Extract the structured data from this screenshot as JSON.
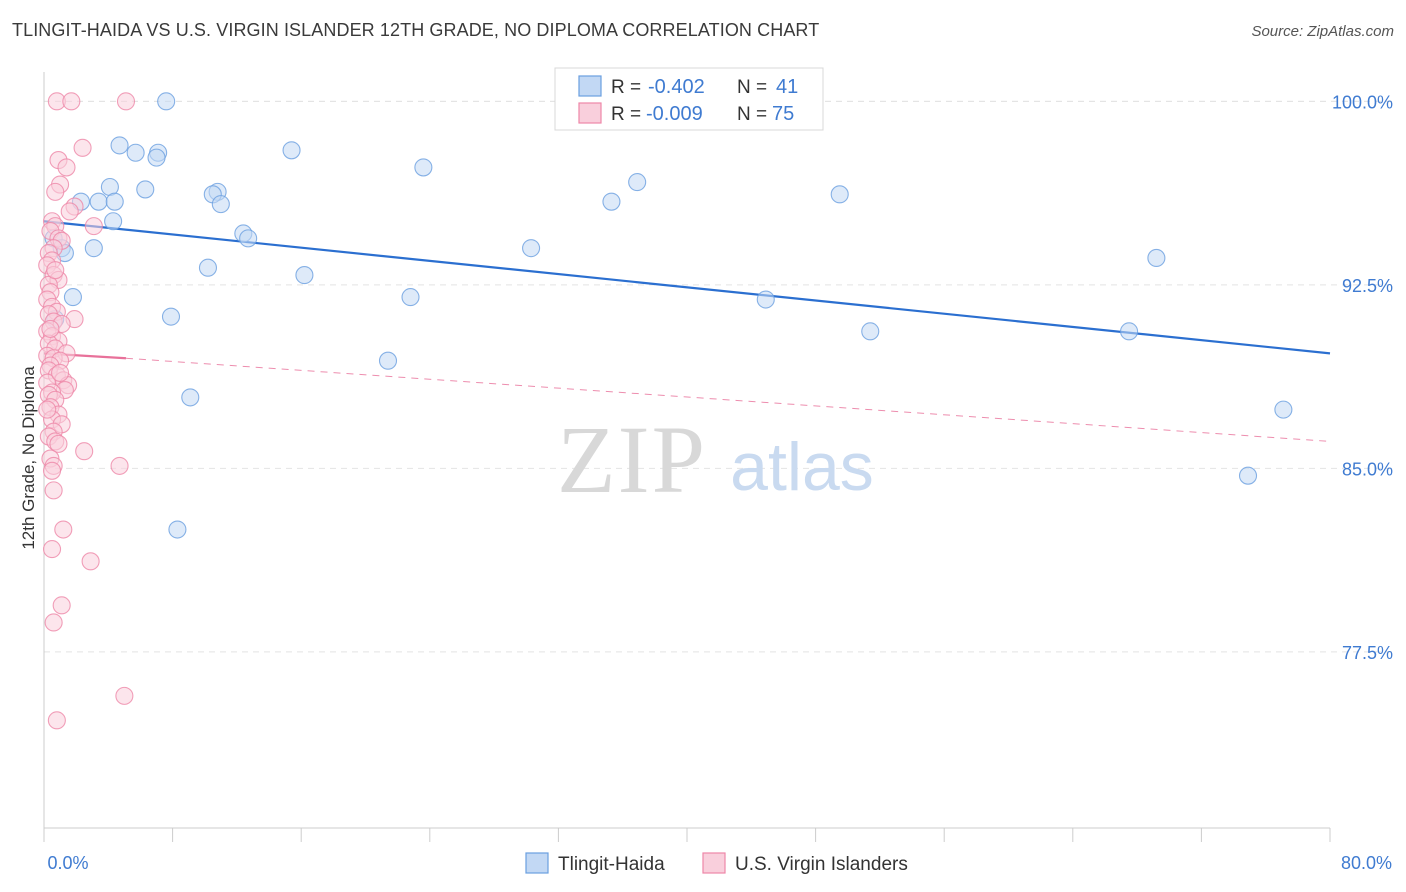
{
  "title": "TLINGIT-HAIDA VS U.S. VIRGIN ISLANDER 12TH GRADE, NO DIPLOMA CORRELATION CHART",
  "source": "Source: ZipAtlas.com",
  "watermark": {
    "zip": "ZIP",
    "atlas": "atlas"
  },
  "stats": [
    {
      "r_label": "R =",
      "r_value": "-0.402",
      "n_label": "N =",
      "n_value": "41"
    },
    {
      "r_label": "R =",
      "r_value": "-0.009",
      "n_label": "N =",
      "n_value": "75"
    }
  ],
  "colors": {
    "blue": "#6a9fe0",
    "blue_fill": "#c2d8f4",
    "blue_line": "#2b6fd0",
    "pink": "#ee87a8",
    "pink_fill": "#f9cfdc",
    "pink_line": "#e8719a",
    "axis_text": "#3f7bd1"
  },
  "chart_data": {
    "type": "scatter",
    "title": "TLINGIT-HAIDA VS U.S. VIRGIN ISLANDER 12TH GRADE, NO DIPLOMA CORRELATION CHART",
    "xlabel": "",
    "ylabel": "12th Grade, No Diploma",
    "xlim": [
      0,
      80
    ],
    "ylim": [
      70.3,
      101.2
    ],
    "x_tick_labels": [
      "0.0%",
      "80.0%"
    ],
    "y_ticks": [
      77.5,
      85.0,
      92.5,
      100.0
    ],
    "y_tick_labels": [
      "77.5%",
      "85.0%",
      "92.5%",
      "100.0%"
    ],
    "grid": true,
    "legend_position": "bottom-center",
    "series": [
      {
        "name": "Tlingit-Haida",
        "color": "#6a9fe0",
        "trend": {
          "x": [
            0,
            80
          ],
          "y": [
            95.1,
            89.7
          ]
        },
        "points": [
          [
            7.6,
            100.0
          ],
          [
            4.7,
            98.2
          ],
          [
            15.4,
            98.0
          ],
          [
            5.7,
            97.9
          ],
          [
            7.1,
            97.9
          ],
          [
            7.0,
            97.7
          ],
          [
            23.6,
            97.3
          ],
          [
            36.9,
            96.7
          ],
          [
            4.1,
            96.5
          ],
          [
            6.3,
            96.4
          ],
          [
            10.8,
            96.3
          ],
          [
            49.5,
            96.2
          ],
          [
            10.5,
            96.2
          ],
          [
            2.3,
            95.9
          ],
          [
            3.4,
            95.9
          ],
          [
            4.4,
            95.9
          ],
          [
            35.3,
            95.9
          ],
          [
            11.0,
            95.8
          ],
          [
            4.3,
            95.1
          ],
          [
            12.4,
            94.6
          ],
          [
            12.7,
            94.4
          ],
          [
            0.6,
            94.4
          ],
          [
            30.3,
            94.0
          ],
          [
            3.1,
            94.0
          ],
          [
            1.1,
            94.0
          ],
          [
            1.3,
            93.8
          ],
          [
            69.2,
            93.6
          ],
          [
            10.2,
            93.2
          ],
          [
            16.2,
            92.9
          ],
          [
            1.8,
            92.0
          ],
          [
            22.8,
            92.0
          ],
          [
            44.9,
            91.9
          ],
          [
            7.9,
            91.2
          ],
          [
            0.7,
            91.1
          ],
          [
            51.4,
            90.6
          ],
          [
            67.5,
            90.6
          ],
          [
            21.4,
            89.4
          ],
          [
            9.1,
            87.9
          ],
          [
            77.1,
            87.4
          ],
          [
            74.9,
            84.7
          ],
          [
            8.3,
            82.5
          ]
        ]
      },
      {
        "name": "U.S. Virgin Islanders",
        "color": "#ee87a8",
        "trend": {
          "x": [
            0,
            5.1
          ],
          "y": [
            89.7,
            89.5
          ]
        },
        "trend_ext": {
          "x": [
            5.1,
            80
          ],
          "y": [
            89.5,
            86.1
          ]
        },
        "points": [
          [
            0.8,
            100.0
          ],
          [
            1.7,
            100.0
          ],
          [
            5.1,
            100.0
          ],
          [
            2.4,
            98.1
          ],
          [
            0.9,
            97.6
          ],
          [
            1.4,
            97.3
          ],
          [
            1.0,
            96.6
          ],
          [
            0.7,
            96.3
          ],
          [
            1.9,
            95.7
          ],
          [
            1.6,
            95.5
          ],
          [
            0.5,
            95.1
          ],
          [
            0.7,
            94.9
          ],
          [
            3.1,
            94.9
          ],
          [
            0.4,
            94.7
          ],
          [
            0.9,
            94.4
          ],
          [
            1.1,
            94.3
          ],
          [
            0.6,
            94.0
          ],
          [
            0.3,
            93.8
          ],
          [
            0.5,
            93.5
          ],
          [
            0.2,
            93.3
          ],
          [
            0.6,
            92.9
          ],
          [
            0.9,
            92.7
          ],
          [
            0.3,
            92.5
          ],
          [
            0.4,
            92.2
          ],
          [
            0.2,
            91.9
          ],
          [
            0.5,
            91.6
          ],
          [
            0.8,
            91.4
          ],
          [
            0.3,
            91.3
          ],
          [
            1.9,
            91.1
          ],
          [
            0.6,
            91.0
          ],
          [
            1.1,
            90.9
          ],
          [
            0.2,
            90.6
          ],
          [
            0.5,
            90.4
          ],
          [
            0.9,
            90.2
          ],
          [
            0.3,
            90.1
          ],
          [
            0.7,
            89.9
          ],
          [
            1.4,
            89.7
          ],
          [
            0.2,
            89.6
          ],
          [
            0.6,
            89.5
          ],
          [
            1.0,
            89.4
          ],
          [
            0.4,
            89.2
          ],
          [
            0.3,
            89.0
          ],
          [
            0.8,
            88.8
          ],
          [
            1.2,
            88.6
          ],
          [
            0.2,
            88.5
          ],
          [
            1.5,
            88.4
          ],
          [
            1.3,
            88.2
          ],
          [
            0.5,
            88.1
          ],
          [
            0.3,
            88.0
          ],
          [
            0.7,
            87.8
          ],
          [
            0.4,
            87.5
          ],
          [
            0.9,
            87.2
          ],
          [
            0.5,
            87.0
          ],
          [
            1.1,
            86.8
          ],
          [
            0.6,
            86.5
          ],
          [
            0.3,
            86.3
          ],
          [
            0.7,
            86.1
          ],
          [
            0.9,
            86.0
          ],
          [
            2.5,
            85.7
          ],
          [
            0.4,
            85.4
          ],
          [
            0.6,
            85.1
          ],
          [
            0.5,
            84.9
          ],
          [
            4.7,
            85.1
          ],
          [
            0.6,
            84.1
          ],
          [
            1.2,
            82.5
          ],
          [
            0.5,
            81.7
          ],
          [
            2.9,
            81.2
          ],
          [
            1.1,
            79.4
          ],
          [
            0.6,
            78.7
          ],
          [
            5.0,
            75.7
          ],
          [
            0.8,
            74.7
          ],
          [
            0.4,
            90.7
          ],
          [
            1.0,
            88.9
          ],
          [
            0.2,
            87.4
          ],
          [
            0.7,
            93.1
          ]
        ]
      }
    ]
  }
}
